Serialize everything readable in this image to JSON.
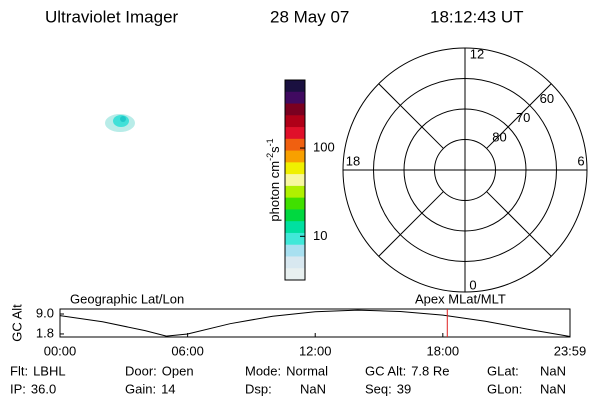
{
  "header": {
    "instrument": "Ultraviolet Imager",
    "date": "28 May 07",
    "time": "18:12:43 UT"
  },
  "colorbar": {
    "label": "photon cm",
    "exp1": "-2",
    "unit2": "s",
    "exp2": "-1",
    "log": true,
    "lim": [
      3.2,
      590
    ],
    "ticks": [
      10,
      100
    ],
    "colors": [
      "#1a1040",
      "#400a60",
      "#7a0020",
      "#b00018",
      "#e0102a",
      "#f06010",
      "#f8a000",
      "#f0f000",
      "#f8f8a0",
      "#b0f000",
      "#40e000",
      "#00d840",
      "#00e0a0",
      "#40e8d8",
      "#a8e0f0",
      "#d8e8f0",
      "#e8f0f0"
    ]
  },
  "polar": {
    "rlim": [
      90,
      50
    ],
    "rings": [
      80,
      70,
      60
    ],
    "mlt_labels": [
      "12",
      "18",
      "6",
      "0"
    ]
  },
  "orbit": {
    "left_title": "Geographic Lat/Lon",
    "right_title": "Apex MLat/MLT",
    "ylabel": "GC Alt",
    "x": [
      0,
      2,
      4,
      5,
      6,
      8,
      10,
      12,
      14,
      16,
      18,
      20,
      22,
      23.98
    ],
    "values": [
      8.4,
      6.2,
      3.0,
      1.0,
      1.8,
      5.5,
      8.2,
      9.8,
      10.4,
      9.9,
      8.6,
      6.4,
      3.5,
      0.9
    ],
    "xlim": [
      0,
      23.98
    ],
    "ylim": [
      0.7,
      10.8
    ],
    "xticks": [
      {
        "value": 0,
        "label": "00:00"
      },
      {
        "value": 6,
        "label": "06:00"
      },
      {
        "value": 12,
        "label": "12:00"
      },
      {
        "value": 18,
        "label": "18:00"
      },
      {
        "value": 23.98,
        "label": "23:59"
      }
    ],
    "yticks": [
      {
        "value": 9.0,
        "label": "9.0"
      },
      {
        "value": 1.8,
        "label": "1.8"
      }
    ],
    "marker_x": 18.21,
    "marker_color": "#e02020"
  },
  "info": [
    [
      [
        "Flt:",
        "LBHL"
      ],
      [
        "Door:",
        "Open"
      ],
      [
        "Mode:",
        "Normal"
      ],
      [
        "GC Alt:",
        "7.8 Re"
      ],
      [
        "GLat:",
        "NaN"
      ]
    ],
    [
      [
        "IP:",
        "36.0"
      ],
      [
        "Gain:",
        "14"
      ],
      [
        "Dsp:",
        "NaN"
      ],
      [
        "Seq:",
        "39"
      ],
      [
        "GLon:",
        "NaN"
      ]
    ]
  ]
}
